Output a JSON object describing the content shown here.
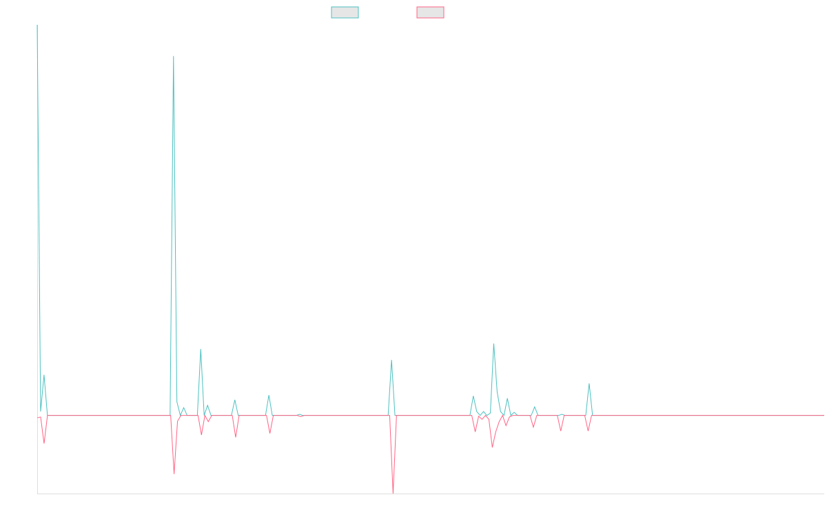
{
  "chart_data": {
    "type": "line",
    "title": "",
    "xlabel": "",
    "ylabel": "",
    "grid": false,
    "legend": "top-center",
    "x_tick_labels": [],
    "y_tick_labels": [],
    "ylim": [
      -20,
      100
    ],
    "series": [
      {
        "color": "#4bc0c0",
        "values": [
          100,
          1,
          10.4,
          0,
          0,
          0,
          0,
          0,
          0,
          0,
          0,
          0,
          0,
          0,
          0,
          0,
          0,
          0,
          0,
          0,
          0,
          0,
          0,
          0,
          0,
          0,
          0,
          0,
          0,
          0,
          0,
          0,
          0,
          0,
          0,
          0,
          0,
          0,
          0,
          0,
          92,
          3.5,
          0,
          2,
          0,
          0,
          0,
          0,
          17,
          0,
          2.6,
          0,
          0,
          0,
          0,
          0,
          0,
          0,
          4,
          0,
          0,
          0,
          0,
          0,
          0,
          0,
          0,
          0,
          5.2,
          0,
          0,
          0,
          0,
          0,
          0,
          0,
          0,
          0.3,
          0,
          0,
          0,
          0,
          0,
          0,
          0,
          0,
          0,
          0,
          0,
          0,
          0,
          0,
          0,
          0,
          0,
          0,
          0,
          0,
          0,
          0,
          0,
          0,
          0,
          0,
          14.2,
          0,
          0,
          0,
          0,
          0,
          0,
          0,
          0,
          0,
          0,
          0,
          0,
          0,
          0,
          0,
          0,
          0,
          0,
          0,
          0,
          0,
          0,
          0,
          5,
          1,
          0,
          1,
          0,
          0.6,
          18.4,
          6,
          1,
          0,
          4.4,
          0,
          0.8,
          0,
          0,
          0,
          0,
          0,
          2.2,
          0,
          0,
          0,
          0,
          0,
          0,
          0,
          0.3,
          0,
          0,
          0,
          0,
          0,
          0,
          0,
          8.2,
          0,
          0,
          0,
          0,
          0,
          0,
          0,
          0,
          0,
          0,
          0,
          0,
          0,
          0,
          0,
          0,
          0,
          0,
          0,
          0,
          0,
          0,
          0,
          0,
          0,
          0,
          0,
          0,
          0,
          0,
          0,
          0,
          0,
          0,
          0,
          0,
          0,
          0,
          0,
          0,
          0,
          0,
          0,
          0,
          0,
          0,
          0,
          0,
          0,
          0,
          0,
          0,
          0,
          0,
          0,
          0,
          0,
          0,
          0,
          0,
          0,
          0,
          0,
          0,
          0,
          0,
          0,
          0,
          0
        ]
      },
      {
        "color": "#ff6384",
        "values": [
          -0.6,
          -0.4,
          -7.2,
          0,
          0,
          0,
          0,
          0,
          0,
          0,
          0,
          0,
          0,
          0,
          0,
          0,
          0,
          0,
          0,
          0,
          0,
          0,
          0,
          0,
          0,
          0,
          0,
          0,
          0,
          0,
          0,
          0,
          0,
          0,
          0,
          0,
          0,
          0,
          0,
          0,
          -15,
          -1.5,
          0,
          0,
          0,
          0,
          0,
          0,
          -5,
          0,
          -1.6,
          0,
          0,
          0,
          0,
          0,
          0,
          0,
          -5.6,
          0,
          0,
          0,
          0,
          0,
          0,
          0,
          0,
          0,
          -4.6,
          0,
          0,
          0,
          0,
          0,
          0,
          0,
          0,
          -0.3,
          0,
          0,
          0,
          0,
          0,
          0,
          0,
          0,
          0,
          0,
          0,
          0,
          0,
          0,
          0,
          0,
          0,
          0,
          0,
          0,
          0,
          0,
          0,
          0,
          0,
          0,
          -20,
          0,
          0,
          0,
          0,
          0,
          0,
          0,
          0,
          0,
          0,
          0,
          0,
          0,
          0,
          0,
          0,
          0,
          0,
          0,
          0,
          0,
          0,
          0,
          -4.2,
          -0.2,
          -1,
          0,
          -1,
          -8.2,
          -4.2,
          -1.6,
          0,
          -2.6,
          -0.4,
          0,
          0,
          0,
          0,
          0,
          0,
          -3,
          0,
          0,
          0,
          0,
          0,
          0,
          0,
          -4,
          0,
          0,
          0,
          0,
          0,
          0,
          0,
          -4,
          0,
          0,
          0,
          0,
          0,
          0,
          0,
          0,
          0,
          0,
          0,
          0,
          0,
          0,
          0,
          0,
          0,
          0,
          0,
          0,
          0,
          0,
          0,
          0,
          0,
          0,
          0,
          0,
          0,
          0,
          0,
          0,
          0,
          0,
          0,
          0,
          0,
          0,
          0,
          0,
          0,
          0,
          0,
          0,
          0,
          0,
          0,
          0,
          0,
          0,
          0,
          0,
          0,
          0,
          0,
          0,
          0,
          0,
          0,
          0,
          0,
          0,
          0,
          0,
          0,
          0,
          0,
          0,
          0
        ]
      }
    ]
  }
}
